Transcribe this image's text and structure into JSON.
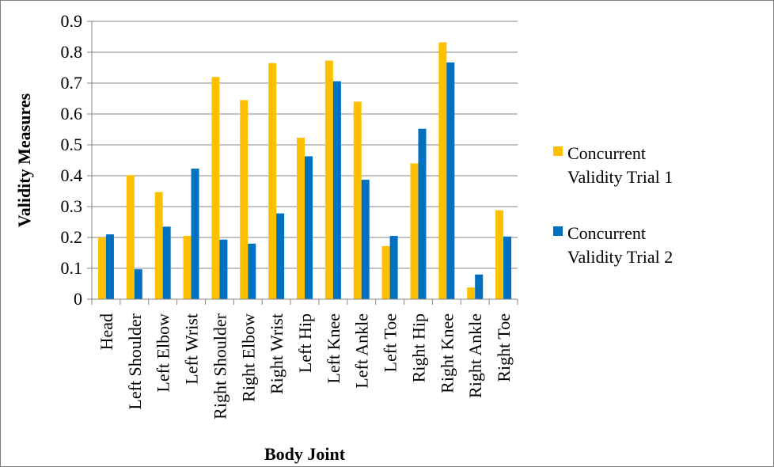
{
  "chart_data": {
    "type": "bar",
    "title": "",
    "xlabel": "Body Joint",
    "ylabel": "Validity Measures",
    "ylim": [
      0,
      0.9
    ],
    "yticks": [
      "0",
      "0.1",
      "0.2",
      "0.3",
      "0.4",
      "0.5",
      "0.6",
      "0.7",
      "0.8",
      "0.9"
    ],
    "grid": true,
    "legend_position": "right",
    "categories": [
      "Head",
      "Left Shoulder",
      "Left Elbow",
      "Left Wrist",
      "Right Shoulder",
      "Right Elbow",
      "Right Wrist",
      "Left Hip",
      "Left Knee",
      "Left Ankle",
      "Left Toe",
      "Right Hip",
      "Right Knee",
      "Right Ankle",
      "Right Toe"
    ],
    "series": [
      {
        "name": "Concurrent Validity Trial 1",
        "legend_lines": [
          "Concurrent",
          "Validity Trial 1"
        ],
        "color": "#FFC000",
        "values": [
          0.2,
          0.402,
          0.347,
          0.205,
          0.72,
          0.645,
          0.765,
          0.523,
          0.773,
          0.64,
          0.172,
          0.44,
          0.832,
          0.038,
          0.288
        ]
      },
      {
        "name": "Concurrent Validity Trial 2",
        "legend_lines": [
          "Concurrent",
          "Validity Trial 2"
        ],
        "color": "#0070C0",
        "values": [
          0.21,
          0.097,
          0.235,
          0.423,
          0.193,
          0.18,
          0.278,
          0.463,
          0.706,
          0.387,
          0.205,
          0.552,
          0.767,
          0.08,
          0.203
        ]
      }
    ]
  }
}
